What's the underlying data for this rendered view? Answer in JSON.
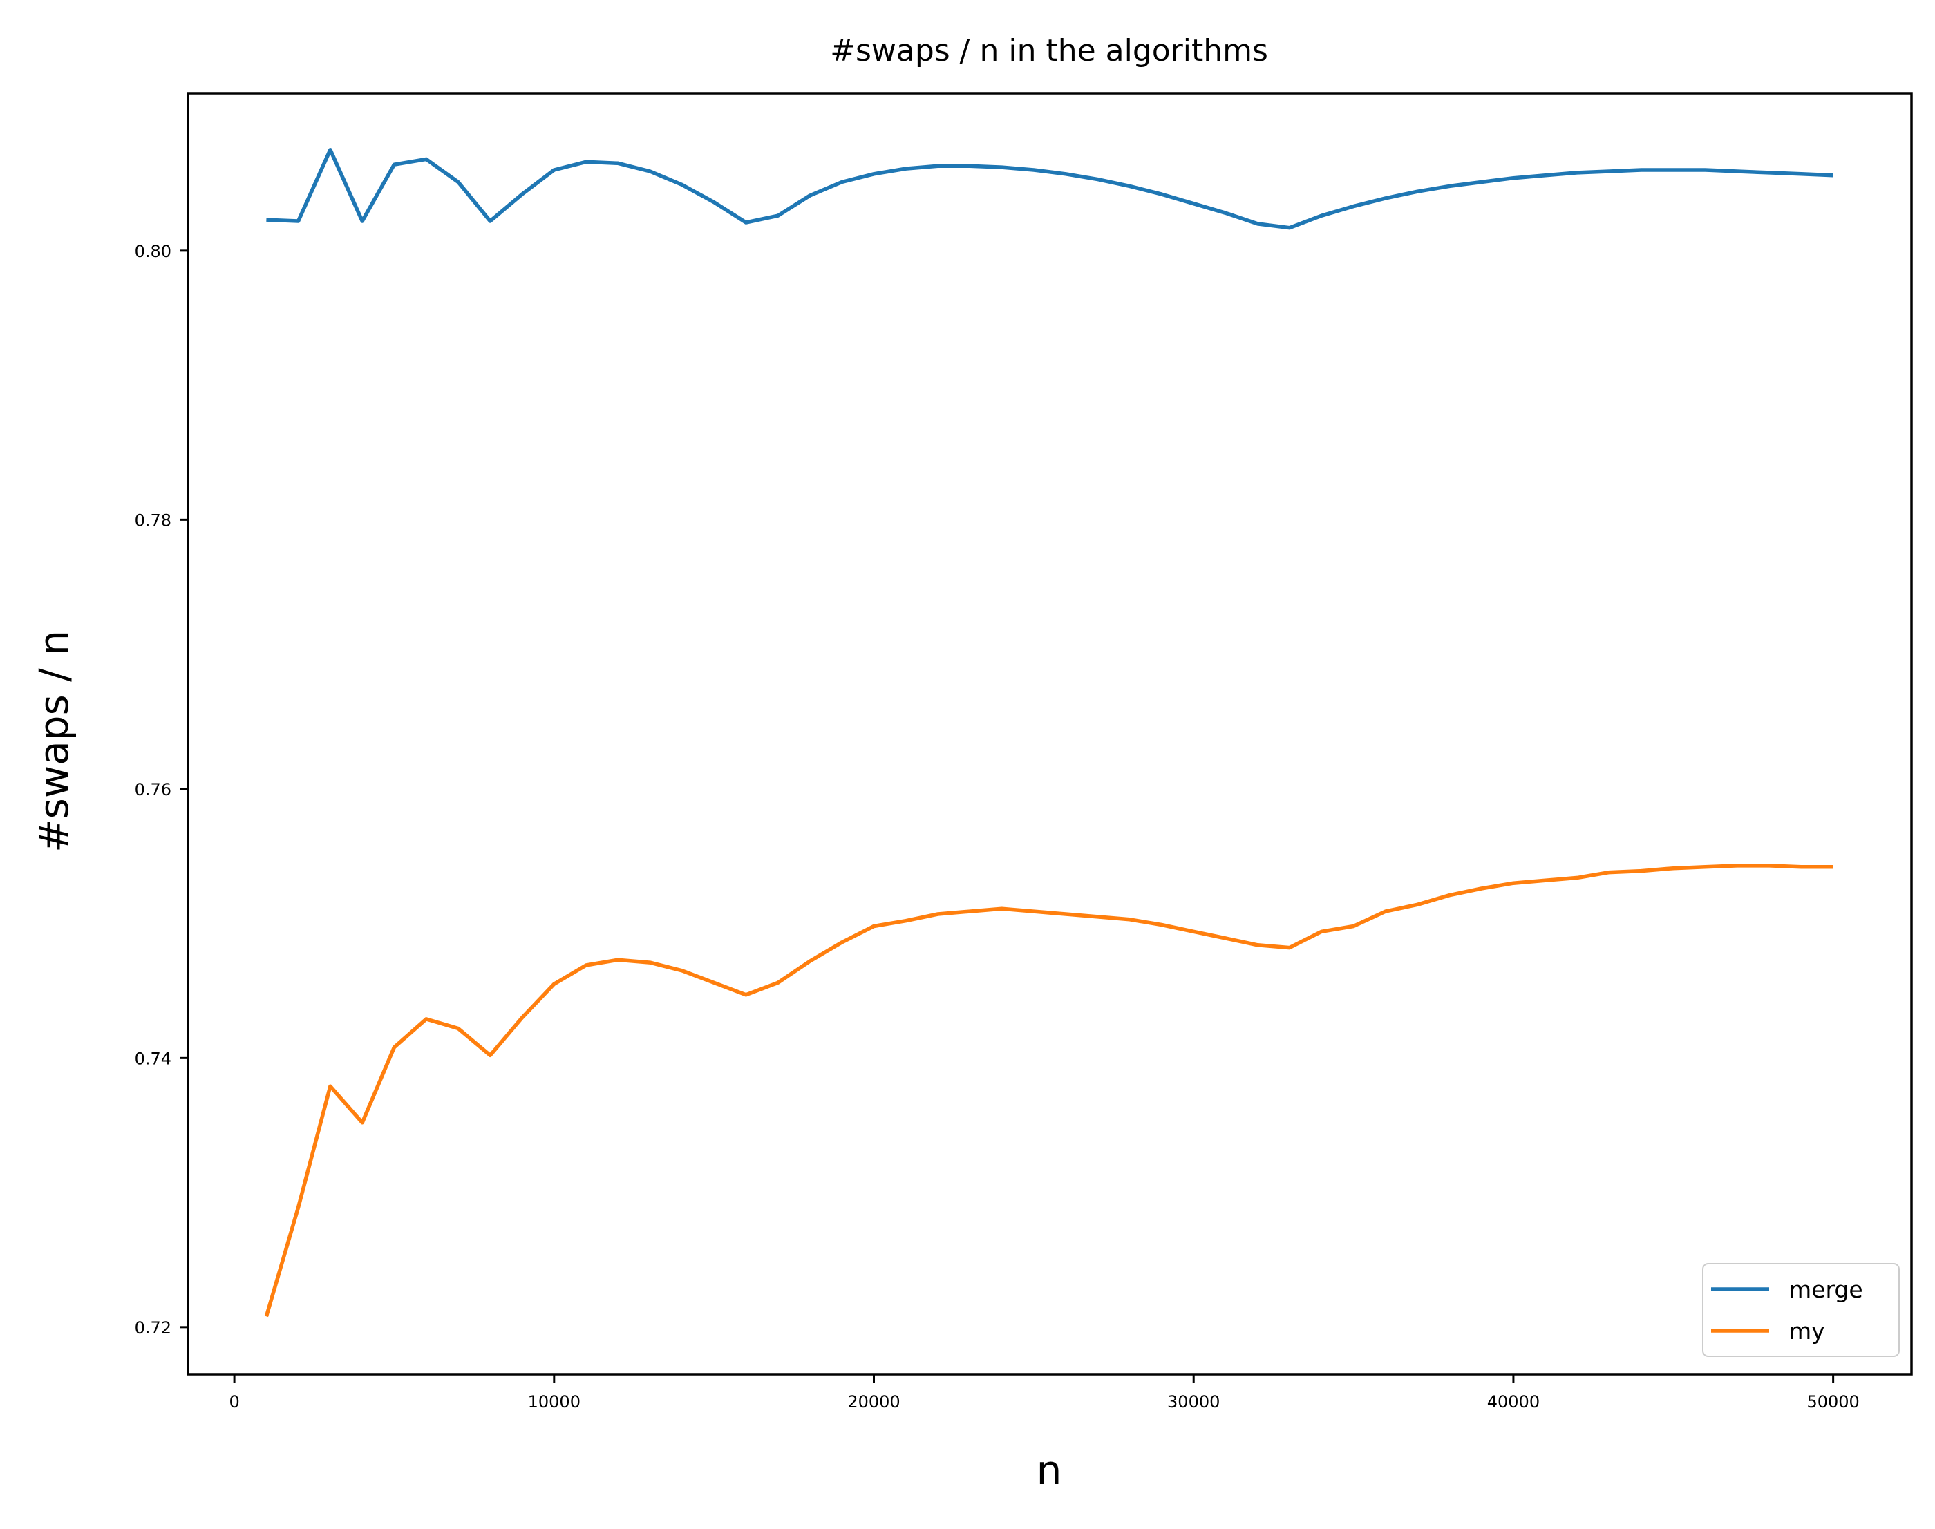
{
  "chart_data": {
    "type": "line",
    "title": "#swaps / n  in the algorithms",
    "xlabel": "n",
    "ylabel": "#swaps / n",
    "xlim": [
      -1450,
      52450
    ],
    "ylim": [
      0.7165,
      0.8117
    ],
    "xticks": [
      0,
      10000,
      20000,
      30000,
      40000,
      50000
    ],
    "xtick_labels": [
      "0",
      "10000",
      "20000",
      "30000",
      "40000",
      "50000"
    ],
    "yticks": [
      0.72,
      0.74,
      0.76,
      0.78,
      0.8
    ],
    "ytick_labels": [
      "0.72",
      "0.74",
      "0.76",
      "0.78",
      "0.80"
    ],
    "grid": false,
    "legend_position": "lower-right",
    "x": [
      1000,
      2000,
      3000,
      4000,
      5000,
      6000,
      7000,
      8000,
      9000,
      10000,
      11000,
      12000,
      13000,
      14000,
      15000,
      16000,
      17000,
      18000,
      19000,
      20000,
      21000,
      22000,
      23000,
      24000,
      25000,
      26000,
      27000,
      28000,
      29000,
      30000,
      31000,
      32000,
      33000,
      34000,
      35000,
      36000,
      37000,
      38000,
      39000,
      40000,
      41000,
      42000,
      43000,
      44000,
      45000,
      46000,
      47000,
      48000,
      49000,
      50000
    ],
    "series": [
      {
        "name": "merge",
        "color": "#1f77b4",
        "values": [
          0.8023,
          0.8022,
          0.8075,
          0.8022,
          0.8064,
          0.8068,
          0.8051,
          0.8022,
          0.8042,
          0.806,
          0.8066,
          0.8065,
          0.8059,
          0.8049,
          0.8036,
          0.8021,
          0.8026,
          0.8041,
          0.8051,
          0.8057,
          0.8061,
          0.8063,
          0.8063,
          0.8062,
          0.806,
          0.8057,
          0.8053,
          0.8048,
          0.8042,
          0.8035,
          0.8028,
          0.802,
          0.8017,
          0.8026,
          0.8033,
          0.8039,
          0.8044,
          0.8048,
          0.8051,
          0.8054,
          0.8056,
          0.8058,
          0.8059,
          0.806,
          0.806,
          0.806,
          0.8059,
          0.8058,
          0.8057,
          0.8056
        ]
      },
      {
        "name": "my",
        "color": "#ff7f0e",
        "values": [
          0.7208,
          0.7289,
          0.7379,
          0.7352,
          0.7408,
          0.7429,
          0.7422,
          0.7402,
          0.743,
          0.7455,
          0.7469,
          0.7473,
          0.7471,
          0.7465,
          0.7456,
          0.7447,
          0.7456,
          0.7472,
          0.7486,
          0.7498,
          0.7502,
          0.7507,
          0.7509,
          0.7511,
          0.7509,
          0.7507,
          0.7505,
          0.7503,
          0.7499,
          0.7494,
          0.7489,
          0.7484,
          0.7482,
          0.7494,
          0.7498,
          0.7509,
          0.7514,
          0.7521,
          0.7526,
          0.753,
          0.7532,
          0.7534,
          0.7538,
          0.7539,
          0.7541,
          0.7542,
          0.7543,
          0.7543,
          0.7542,
          0.7542
        ]
      }
    ]
  }
}
